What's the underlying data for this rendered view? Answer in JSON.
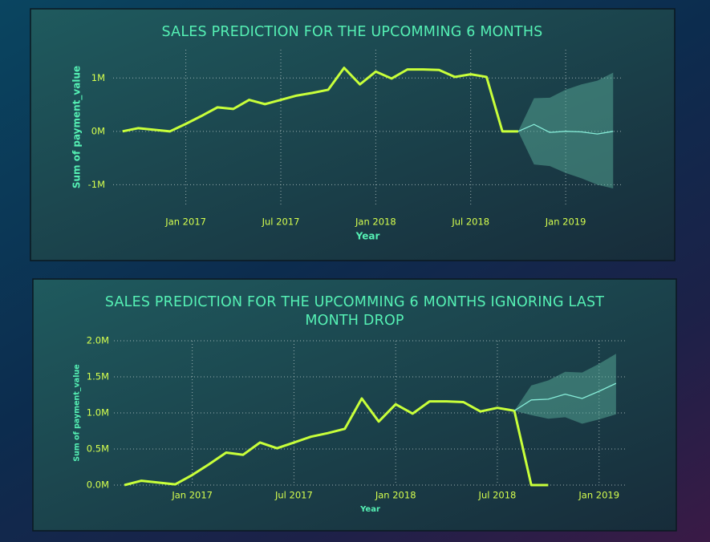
{
  "chart_data": [
    {
      "type": "line",
      "title": "SALES PREDICTION FOR THE UPCOMMING 6 MONTHS",
      "x_label": "Year",
      "y_label": "Sum of payment_value",
      "x": [
        "2016-09",
        "2016-10",
        "2016-12",
        "2017-01",
        "2017-02",
        "2017-03",
        "2017-04",
        "2017-05",
        "2017-06",
        "2017-07",
        "2017-08",
        "2017-09",
        "2017-10",
        "2017-11",
        "2017-12",
        "2018-01",
        "2018-02",
        "2018-03",
        "2018-04",
        "2018-05",
        "2018-06",
        "2018-07",
        "2018-08",
        "2018-09",
        "2018-10",
        "2018-11",
        "2018-12",
        "2019-01",
        "2019-02",
        "2019-03",
        "2019-04"
      ],
      "series": [
        {
          "color": "#c8ff3a",
          "values": [
            0,
            60000,
            0,
            140000,
            290000,
            450000,
            420000,
            590000,
            510000,
            590000,
            670000,
            720000,
            780000,
            1190000,
            880000,
            1120000,
            990000,
            1160000,
            1160000,
            1150000,
            1020000,
            1070000,
            1020000,
            0,
            0,
            null,
            null,
            null,
            null,
            null,
            null
          ]
        },
        {
          "color": "#86ecd8",
          "band_color": "#5fb7a2",
          "values": [
            null,
            null,
            null,
            null,
            null,
            null,
            null,
            null,
            null,
            null,
            null,
            null,
            null,
            null,
            null,
            null,
            null,
            null,
            null,
            null,
            null,
            null,
            null,
            null,
            0,
            130000,
            -20000,
            0,
            -10000,
            -50000,
            0
          ],
          "upper": [
            null,
            null,
            null,
            null,
            null,
            null,
            null,
            null,
            null,
            null,
            null,
            null,
            null,
            null,
            null,
            null,
            null,
            null,
            null,
            null,
            null,
            null,
            null,
            null,
            0,
            620000,
            630000,
            780000,
            880000,
            950000,
            1100000
          ],
          "lower": [
            null,
            null,
            null,
            null,
            null,
            null,
            null,
            null,
            null,
            null,
            null,
            null,
            null,
            null,
            null,
            null,
            null,
            null,
            null,
            null,
            null,
            null,
            null,
            null,
            0,
            -620000,
            -650000,
            -780000,
            -880000,
            -1000000,
            -1070000
          ]
        }
      ],
      "xlim": [
        "2016-08",
        "2019-05"
      ],
      "xticks": [
        {
          "value": "2017-01",
          "label": "Jan 2017"
        },
        {
          "value": "2017-07",
          "label": "Jul 2017"
        },
        {
          "value": "2018-01",
          "label": "Jan 2018"
        },
        {
          "value": "2018-07",
          "label": "Jul 2018"
        },
        {
          "value": "2019-01",
          "label": "Jan 2019"
        }
      ],
      "ylim": [
        -1370000,
        1530000
      ],
      "yticks": [
        {
          "value": -1000000,
          "label": "-1M"
        },
        {
          "value": 0,
          "label": "0M"
        },
        {
          "value": 1000000,
          "label": "1M"
        }
      ],
      "grid": true
    },
    {
      "type": "line",
      "title": "SALES PREDICTION FOR THE UPCOMMING 6 MONTHS IGNORING LAST MONTH DROP",
      "x_label": "Year",
      "y_label": "Sum of payment_value",
      "x": [
        "2016-09",
        "2016-10",
        "2016-12",
        "2017-01",
        "2017-02",
        "2017-03",
        "2017-04",
        "2017-05",
        "2017-06",
        "2017-07",
        "2017-08",
        "2017-09",
        "2017-10",
        "2017-11",
        "2017-12",
        "2018-01",
        "2018-02",
        "2018-03",
        "2018-04",
        "2018-05",
        "2018-06",
        "2018-07",
        "2018-08",
        "2018-09",
        "2018-10",
        "2018-11",
        "2018-12",
        "2019-01",
        "2019-02"
      ],
      "series": [
        {
          "color": "#c8ff3a",
          "values": [
            0,
            60000,
            10000,
            140000,
            290000,
            450000,
            420000,
            590000,
            510000,
            590000,
            670000,
            720000,
            780000,
            1200000,
            880000,
            1120000,
            990000,
            1160000,
            1160000,
            1150000,
            1020000,
            1070000,
            1030000,
            0,
            0,
            null,
            null,
            null,
            null
          ]
        },
        {
          "color": "#86ecd8",
          "band_color": "#5fb7a2",
          "values": [
            null,
            null,
            null,
            null,
            null,
            null,
            null,
            null,
            null,
            null,
            null,
            null,
            null,
            null,
            null,
            null,
            null,
            null,
            null,
            null,
            null,
            null,
            1030000,
            1180000,
            1190000,
            1260000,
            1200000,
            1300000,
            1410000
          ],
          "upper": [
            null,
            null,
            null,
            null,
            null,
            null,
            null,
            null,
            null,
            null,
            null,
            null,
            null,
            null,
            null,
            null,
            null,
            null,
            null,
            null,
            null,
            null,
            1030000,
            1380000,
            1450000,
            1570000,
            1560000,
            1680000,
            1820000
          ],
          "lower": [
            null,
            null,
            null,
            null,
            null,
            null,
            null,
            null,
            null,
            null,
            null,
            null,
            null,
            null,
            null,
            null,
            null,
            null,
            null,
            null,
            null,
            null,
            1030000,
            970000,
            920000,
            940000,
            850000,
            910000,
            980000
          ]
        }
      ],
      "xlim": [
        "2016-08",
        "2019-03"
      ],
      "xticks": [
        {
          "value": "2017-01",
          "label": "Jan 2017"
        },
        {
          "value": "2017-07",
          "label": "Jul 2017"
        },
        {
          "value": "2018-01",
          "label": "Jan 2018"
        },
        {
          "value": "2018-07",
          "label": "Jul 2018"
        },
        {
          "value": "2019-01",
          "label": "Jan 2019"
        }
      ],
      "ylim": [
        0,
        2000000
      ],
      "yticks": [
        {
          "value": 0,
          "label": "0.0M"
        },
        {
          "value": 500000,
          "label": "0.5M"
        },
        {
          "value": 1000000,
          "label": "1.0M"
        },
        {
          "value": 1500000,
          "label": "1.5M"
        },
        {
          "value": 2000000,
          "label": "2.0M"
        }
      ],
      "grid": true
    }
  ]
}
